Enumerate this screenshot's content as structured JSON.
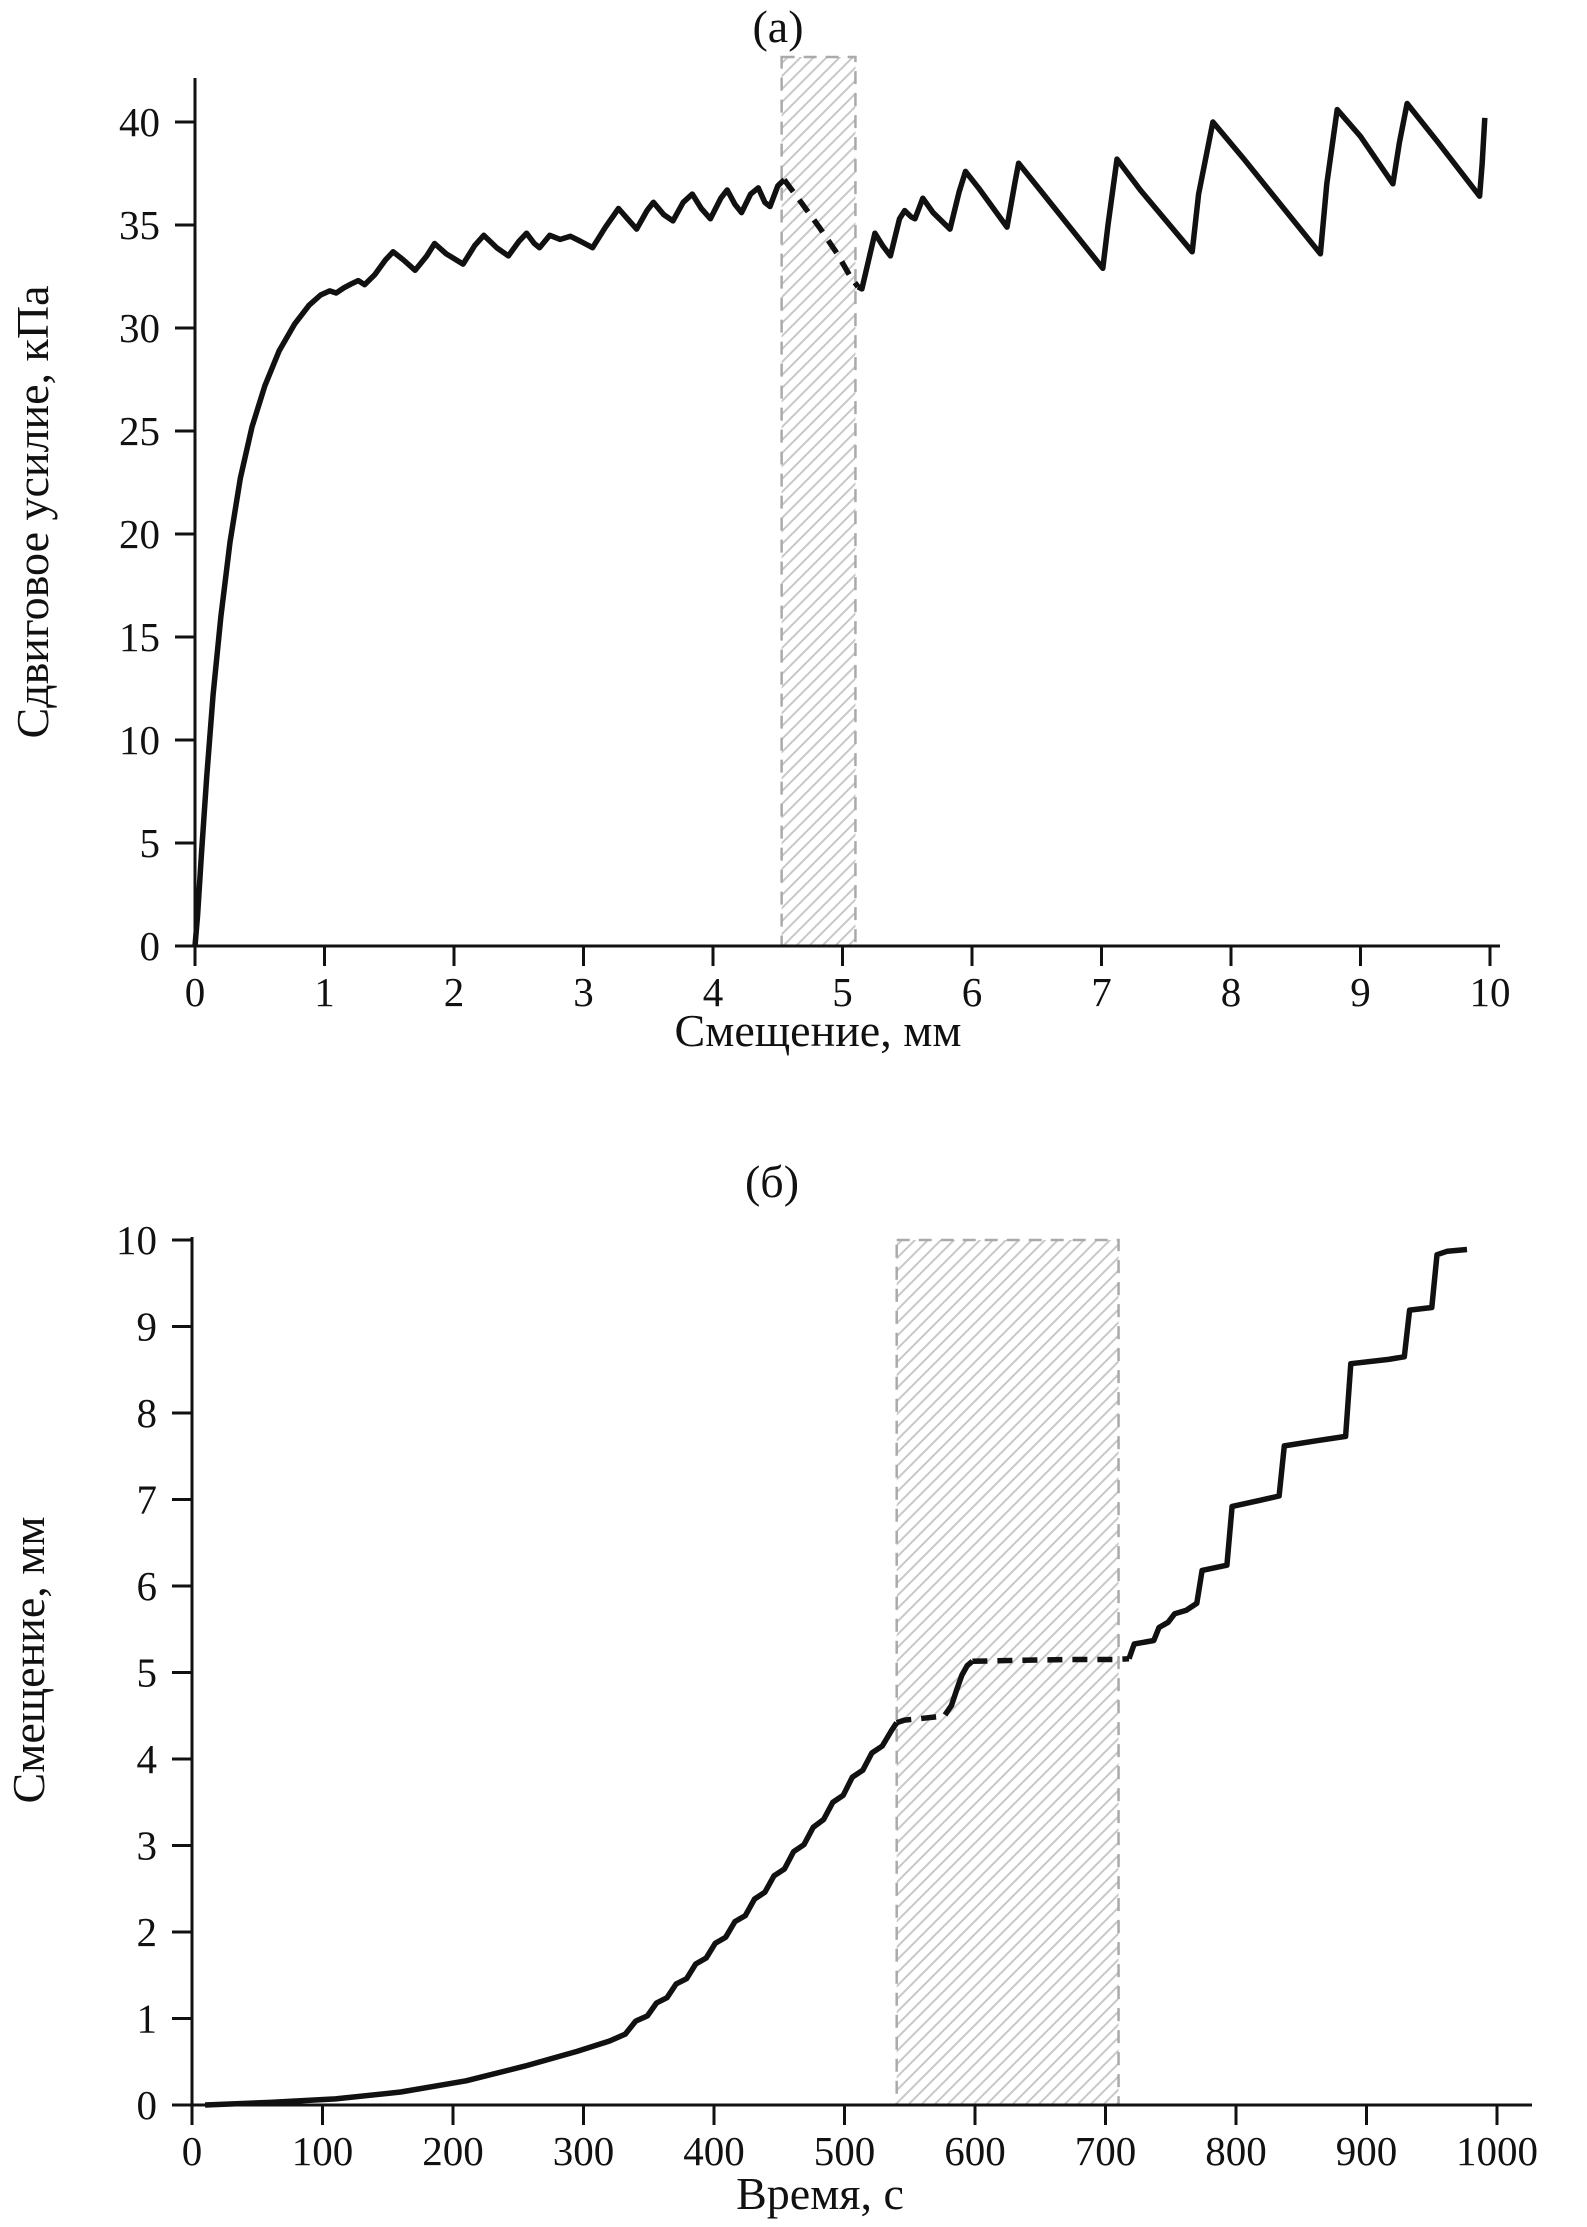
{
  "figure": {
    "background": "#ffffff",
    "text_color": "#111111"
  },
  "chart_data": [
    {
      "id": "a",
      "type": "line",
      "title": "(а)",
      "xlabel": "Смещение, мм",
      "ylabel": "Сдвиговое усилие, кПа",
      "xlim": [
        0,
        10.1
      ],
      "ylim": [
        0,
        42
      ],
      "xticks": [
        0,
        1,
        2,
        3,
        4,
        5,
        6,
        7,
        8,
        9,
        10
      ],
      "yticks": [
        0,
        5,
        10,
        15,
        20,
        25,
        30,
        35,
        40
      ],
      "grid": false,
      "legend": "none",
      "line_color": "#111111",
      "hatch_region": {
        "x0": 4.53,
        "x1": 5.1,
        "full_height": true,
        "border_color": "#aaaaaa",
        "hatch_color": "#c8c8c8"
      },
      "series": [
        {
          "name": "loading-and-stick-slip-onset",
          "style": "solid",
          "points": [
            [
              0,
              0
            ],
            [
              0.02,
              1.5
            ],
            [
              0.05,
              4.5
            ],
            [
              0.09,
              8.2
            ],
            [
              0.14,
              12.2
            ],
            [
              0.2,
              16
            ],
            [
              0.27,
              19.6
            ],
            [
              0.35,
              22.7
            ],
            [
              0.44,
              25.2
            ],
            [
              0.54,
              27.2
            ],
            [
              0.65,
              28.9
            ],
            [
              0.77,
              30.2
            ],
            [
              0.88,
              31.1
            ],
            [
              0.97,
              31.6
            ],
            [
              1.04,
              31.8
            ],
            [
              1.09,
              31.7
            ],
            [
              1.15,
              31.95
            ],
            [
              1.21,
              32.15
            ],
            [
              1.26,
              32.3
            ],
            [
              1.31,
              32.1
            ],
            [
              1.39,
              32.6
            ],
            [
              1.47,
              33.3
            ],
            [
              1.53,
              33.7
            ],
            [
              1.61,
              33.3
            ],
            [
              1.7,
              32.8
            ],
            [
              1.79,
              33.5
            ],
            [
              1.85,
              34.1
            ],
            [
              1.94,
              33.6
            ],
            [
              2.07,
              33.1
            ],
            [
              2.16,
              34
            ],
            [
              2.23,
              34.5
            ],
            [
              2.33,
              33.9
            ],
            [
              2.42,
              33.5
            ],
            [
              2.5,
              34.2
            ],
            [
              2.56,
              34.6
            ],
            [
              2.62,
              34.1
            ],
            [
              2.66,
              33.9
            ],
            [
              2.74,
              34.5
            ],
            [
              2.82,
              34.3
            ],
            [
              2.9,
              34.45
            ],
            [
              2.98,
              34.2
            ],
            [
              3.07,
              33.9
            ],
            [
              3.17,
              34.9
            ],
            [
              3.27,
              35.8
            ],
            [
              3.34,
              35.3
            ],
            [
              3.41,
              34.8
            ],
            [
              3.49,
              35.7
            ],
            [
              3.54,
              36.1
            ],
            [
              3.62,
              35.5
            ],
            [
              3.69,
              35.2
            ],
            [
              3.77,
              36.1
            ],
            [
              3.84,
              36.5
            ],
            [
              3.91,
              35.8
            ],
            [
              3.98,
              35.3
            ],
            [
              4.06,
              36.3
            ],
            [
              4.11,
              36.7
            ],
            [
              4.17,
              36
            ],
            [
              4.22,
              35.6
            ],
            [
              4.29,
              36.5
            ],
            [
              4.35,
              36.8
            ],
            [
              4.4,
              36.1
            ],
            [
              4.44,
              35.9
            ],
            [
              4.5,
              36.9
            ],
            [
              4.55,
              37.2
            ]
          ]
        },
        {
          "name": "drop-inside-hatched-window",
          "style": "dashed",
          "points": [
            [
              4.55,
              37.2
            ],
            [
              4.68,
              36.1
            ],
            [
              4.82,
              34.9
            ],
            [
              4.96,
              33.6
            ],
            [
              5.06,
              32.5
            ],
            [
              5.12,
              32
            ]
          ]
        },
        {
          "name": "large-stick-slip",
          "style": "solid",
          "points": [
            [
              5.12,
              32
            ],
            [
              5.15,
              31.9
            ],
            [
              5.25,
              34.6
            ],
            [
              5.31,
              34
            ],
            [
              5.37,
              33.5
            ],
            [
              5.44,
              35.3
            ],
            [
              5.48,
              35.7
            ],
            [
              5.53,
              35.4
            ],
            [
              5.56,
              35.3
            ],
            [
              5.62,
              36.3
            ],
            [
              5.7,
              35.6
            ],
            [
              5.83,
              34.8
            ],
            [
              5.9,
              36.6
            ],
            [
              5.95,
              37.6
            ],
            [
              6.05,
              36.8
            ],
            [
              6.27,
              34.9
            ],
            [
              6.33,
              37
            ],
            [
              6.36,
              38
            ],
            [
              6.5,
              36.9
            ],
            [
              7.01,
              32.9
            ],
            [
              7.05,
              35
            ],
            [
              7.12,
              38.2
            ],
            [
              7.3,
              36.7
            ],
            [
              7.7,
              33.7
            ],
            [
              7.75,
              36.5
            ],
            [
              7.86,
              40
            ],
            [
              8.1,
              38.2
            ],
            [
              8.69,
              33.6
            ],
            [
              8.74,
              37
            ],
            [
              8.82,
              40.6
            ],
            [
              9,
              39.3
            ],
            [
              9.25,
              37
            ],
            [
              9.3,
              39
            ],
            [
              9.36,
              40.9
            ],
            [
              9.6,
              39
            ],
            [
              9.92,
              36.4
            ],
            [
              9.94,
              38
            ],
            [
              9.96,
              40.2
            ]
          ]
        }
      ]
    },
    {
      "id": "b",
      "type": "line",
      "title": "(б)",
      "xlabel": "Время, с",
      "ylabel": "Смещение, мм",
      "xlim": [
        0,
        1025
      ],
      "ylim": [
        0,
        10
      ],
      "xticks": [
        0,
        100,
        200,
        300,
        400,
        500,
        600,
        700,
        800,
        900,
        1000
      ],
      "yticks": [
        0,
        1,
        2,
        3,
        4,
        5,
        6,
        7,
        8,
        9,
        10
      ],
      "grid": false,
      "legend": "none",
      "line_color": "#111111",
      "hatch_region": {
        "x0": 540,
        "x1": 710,
        "full_height": true,
        "border_color": "#aaaaaa",
        "hatch_color": "#c8c8c8"
      },
      "series": [
        {
          "name": "creep-and-small-steps",
          "style": "solid",
          "points": [
            [
              10,
              0
            ],
            [
              60,
              0.03
            ],
            [
              110,
              0.07
            ],
            [
              160,
              0.15
            ],
            [
              210,
              0.28
            ],
            [
              255,
              0.45
            ],
            [
              295,
              0.62
            ],
            [
              320,
              0.74
            ],
            [
              332,
              0.82
            ],
            [
              340,
              0.97
            ],
            [
              349,
              1.03
            ],
            [
              356,
              1.18
            ],
            [
              364,
              1.24
            ],
            [
              371,
              1.4
            ],
            [
              379,
              1.46
            ],
            [
              386,
              1.63
            ],
            [
              394,
              1.7
            ],
            [
              401,
              1.87
            ],
            [
              409,
              1.94
            ],
            [
              416,
              2.12
            ],
            [
              424,
              2.19
            ],
            [
              431,
              2.38
            ],
            [
              439,
              2.46
            ],
            [
              446,
              2.65
            ],
            [
              454,
              2.73
            ],
            [
              461,
              2.93
            ],
            [
              469,
              3.01
            ],
            [
              476,
              3.21
            ],
            [
              484,
              3.3
            ],
            [
              491,
              3.5
            ],
            [
              499,
              3.58
            ],
            [
              506,
              3.79
            ],
            [
              514,
              3.87
            ],
            [
              521,
              4.07
            ],
            [
              529,
              4.15
            ],
            [
              536,
              4.33
            ],
            [
              540,
              4.42
            ]
          ]
        },
        {
          "name": "plateau-in-window-1",
          "style": "dashed",
          "points": [
            [
              540,
              4.42
            ],
            [
              546,
              4.45
            ],
            [
              560,
              4.47
            ],
            [
              572,
              4.49
            ],
            [
              577,
              4.51
            ]
          ]
        },
        {
          "name": "step-in-window",
          "style": "solid",
          "points": [
            [
              577,
              4.51
            ],
            [
              582,
              4.62
            ],
            [
              586,
              4.8
            ],
            [
              590,
              4.97
            ],
            [
              594,
              5.08
            ],
            [
              598,
              5.13
            ]
          ]
        },
        {
          "name": "plateau-in-window-2",
          "style": "dashed",
          "points": [
            [
              598,
              5.13
            ],
            [
              630,
              5.14
            ],
            [
              670,
              5.15
            ],
            [
              707,
              5.15
            ],
            [
              718,
              5.16
            ]
          ]
        },
        {
          "name": "staircase-slip-events",
          "style": "solid",
          "points": [
            [
              718,
              5.16
            ],
            [
              722,
              5.33
            ],
            [
              737,
              5.37
            ],
            [
              741,
              5.52
            ],
            [
              748,
              5.58
            ],
            [
              753,
              5.68
            ],
            [
              762,
              5.72
            ],
            [
              770,
              5.8
            ],
            [
              774,
              6.18
            ],
            [
              793,
              6.24
            ],
            [
              797,
              6.92
            ],
            [
              818,
              6.99
            ],
            [
              833,
              7.04
            ],
            [
              837,
              7.62
            ],
            [
              862,
              7.68
            ],
            [
              884,
              7.73
            ],
            [
              888,
              8.57
            ],
            [
              917,
              8.62
            ],
            [
              929,
              8.65
            ],
            [
              933,
              9.19
            ],
            [
              950,
              9.22
            ],
            [
              954,
              9.83
            ],
            [
              962,
              9.87
            ],
            [
              977,
              9.89
            ]
          ]
        }
      ]
    }
  ]
}
